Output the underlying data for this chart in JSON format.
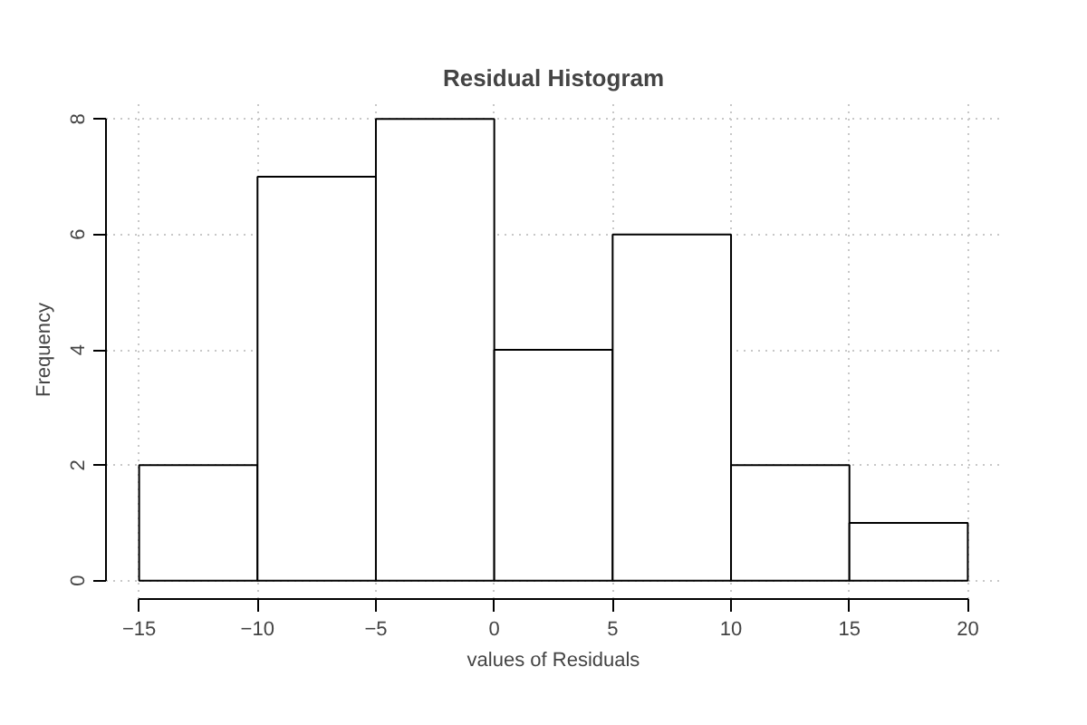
{
  "chart_data": {
    "type": "histogram",
    "title": "Residual Histogram",
    "xlabel": "values of Residuals",
    "ylabel": "Frequency",
    "bins": [
      -15,
      -10,
      -5,
      0,
      5,
      10,
      15,
      20
    ],
    "values": [
      2,
      7,
      8,
      4,
      6,
      2,
      1
    ],
    "color": "#ffffff",
    "xlim": [
      -16.4,
      21.4
    ],
    "ylim": [
      -0.32,
      8.32
    ],
    "xticks": [
      -15,
      -10,
      -5,
      0,
      5,
      10,
      15,
      20
    ],
    "yticks": [
      0,
      2,
      4,
      6,
      8
    ],
    "grid": true
  }
}
